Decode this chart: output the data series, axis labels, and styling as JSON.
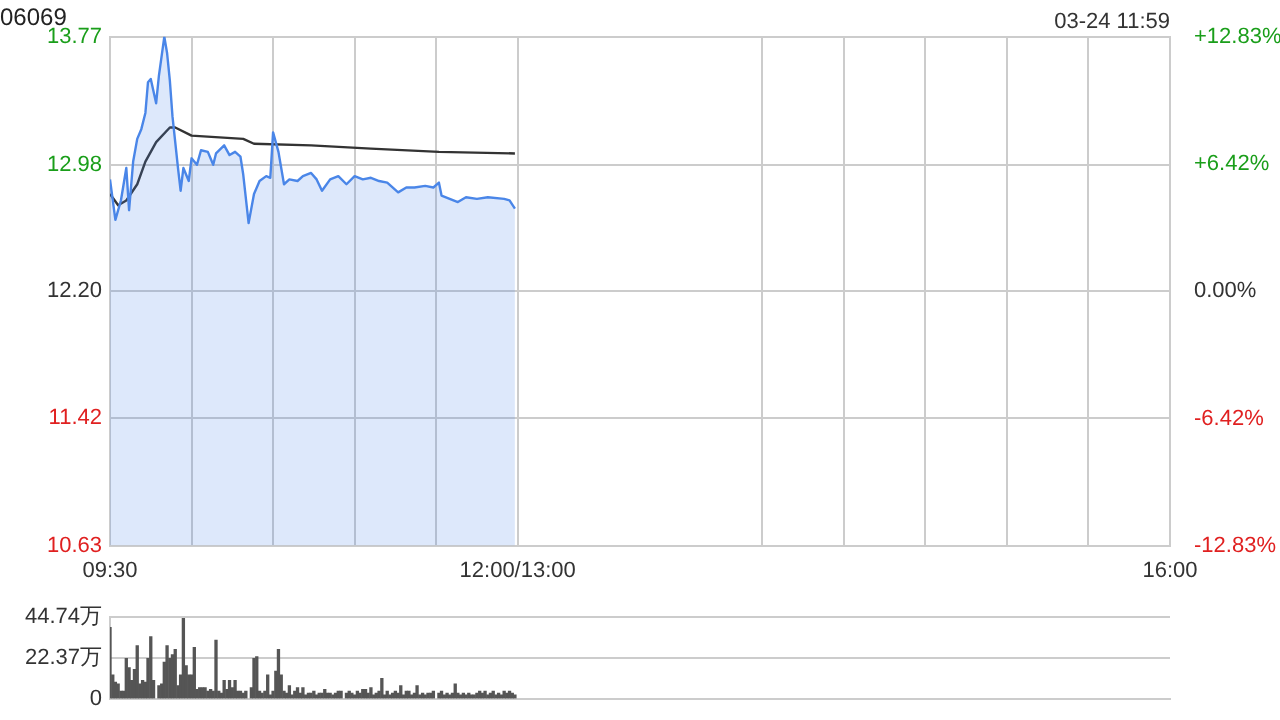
{
  "chart_data": [
    {
      "type": "line",
      "title": "06069",
      "annotations": [
        "03-24 11:59"
      ],
      "marker": "none",
      "grid": true,
      "xlim": [
        9.5,
        16
      ],
      "xticks": [
        {
          "value": 9.5,
          "label": "09:30"
        },
        {
          "value": 10,
          "label": null
        },
        {
          "value": 10.5,
          "label": null
        },
        {
          "value": 11,
          "label": null
        },
        {
          "value": 11.5,
          "label": null
        },
        {
          "value": 12,
          "label": "12:00/13:00"
        },
        {
          "value": 13.5,
          "label": null
        },
        {
          "value": 14,
          "label": null
        },
        {
          "value": 14.5,
          "label": null
        },
        {
          "value": 15,
          "label": null
        },
        {
          "value": 15.5,
          "label": null
        },
        {
          "value": 16,
          "label": "16:00"
        }
      ],
      "ylim": [
        10.63,
        13.77
      ],
      "yticks": [
        10.63,
        11.42,
        {
          "value": 12.2,
          "label": "12.20"
        },
        12.98,
        13.77
      ],
      "y2lim": [
        -12.83,
        12.83
      ],
      "y2ticks": [
        {
          "value": -12.83,
          "label": "-12.83%"
        },
        {
          "value": -6.42,
          "label": "-6.42%"
        },
        {
          "value": 0,
          "label": "0.00%"
        },
        {
          "value": 6.42,
          "label": "+6.42%"
        },
        {
          "value": 12.83,
          "label": "+12.83%"
        }
      ],
      "series": [
        {
          "type": "area",
          "color": "#4a86e8",
          "x": [
            9.5,
            9.533,
            9.567,
            9.6,
            9.617,
            9.642,
            9.667,
            9.692,
            9.717,
            9.733,
            9.75,
            9.783,
            9.8,
            9.833,
            9.85,
            9.867,
            9.883,
            9.917,
            9.933,
            9.95,
            9.983,
            10,
            10.033,
            10.058,
            10.1,
            10.133,
            10.15,
            10.2,
            10.233,
            10.267,
            10.3,
            10.317,
            10.35,
            10.383,
            10.417,
            10.458,
            10.483,
            10.5,
            10.533,
            10.567,
            10.6,
            10.65,
            10.683,
            10.733,
            10.767,
            10.8,
            10.85,
            10.9,
            10.95,
            11,
            11.05,
            11.1,
            11.15,
            11.2,
            11.267,
            11.317,
            11.367,
            11.433,
            11.483,
            11.517,
            11.533,
            11.633,
            11.683,
            11.75,
            11.817,
            11.917,
            11.95,
            11.983
          ],
          "values": [
            12.89,
            12.64,
            12.76,
            12.96,
            12.7,
            13.0,
            13.14,
            13.2,
            13.3,
            13.49,
            13.51,
            13.36,
            13.53,
            13.77,
            13.67,
            13.5,
            13.28,
            12.96,
            12.82,
            12.96,
            12.88,
            13.02,
            12.98,
            13.07,
            13.06,
            12.98,
            13.05,
            13.1,
            13.04,
            13.06,
            13.03,
            12.92,
            12.62,
            12.8,
            12.88,
            12.91,
            12.9,
            13.18,
            13.06,
            12.86,
            12.89,
            12.88,
            12.91,
            12.93,
            12.89,
            12.82,
            12.89,
            12.91,
            12.86,
            12.91,
            12.89,
            12.9,
            12.88,
            12.87,
            12.81,
            12.84,
            12.84,
            12.85,
            12.84,
            12.87,
            12.79,
            12.75,
            12.78,
            12.77,
            12.78,
            12.77,
            12.76,
            12.71
          ]
        },
        {
          "type": "line",
          "color": "#333333",
          "x": [
            9.5,
            9.55,
            9.6,
            9.667,
            9.717,
            9.783,
            9.867,
            9.9,
            10,
            10.317,
            10.383,
            10.733,
            11.1,
            11.517,
            11.983
          ],
          "values": [
            12.8,
            12.73,
            12.76,
            12.86,
            13.0,
            13.12,
            13.21,
            13.21,
            13.16,
            13.14,
            13.11,
            13.1,
            13.08,
            13.06,
            13.05
          ]
        }
      ]
    },
    {
      "type": "bar",
      "grid": "y",
      "tick_labels": "y",
      "xlim": [
        9.5,
        16
      ],
      "ylim": [
        0,
        44.74
      ],
      "yticks": [
        0,
        {
          "value": 22.37,
          "label": "22.37万"
        },
        {
          "value": 44.74,
          "label": "44.74万"
        }
      ],
      "series": [
        {
          "color": "#555555",
          "x": [
            9.5,
            9.517,
            9.533,
            9.55,
            9.567,
            9.583,
            9.6,
            9.617,
            9.633,
            9.65,
            9.667,
            9.683,
            9.7,
            9.717,
            9.733,
            9.75,
            9.767,
            9.8,
            9.817,
            9.833,
            9.85,
            9.867,
            9.883,
            9.9,
            9.917,
            9.933,
            9.95,
            9.967,
            9.983,
            10,
            10.017,
            10.033,
            10.05,
            10.067,
            10.083,
            10.1,
            10.117,
            10.133,
            10.15,
            10.167,
            10.183,
            10.2,
            10.217,
            10.233,
            10.25,
            10.267,
            10.283,
            10.3,
            10.317,
            10.333,
            10.367,
            10.383,
            10.4,
            10.417,
            10.433,
            10.45,
            10.467,
            10.483,
            10.5,
            10.517,
            10.533,
            10.55,
            10.567,
            10.583,
            10.6,
            10.617,
            10.633,
            10.65,
            10.667,
            10.683,
            10.7,
            10.717,
            10.733,
            10.75,
            10.767,
            10.783,
            10.8,
            10.817,
            10.833,
            10.85,
            10.867,
            10.883,
            10.9,
            10.917,
            10.95,
            10.967,
            10.983,
            11,
            11.017,
            11.033,
            11.05,
            11.067,
            11.083,
            11.1,
            11.117,
            11.133,
            11.15,
            11.167,
            11.183,
            11.2,
            11.217,
            11.233,
            11.25,
            11.267,
            11.283,
            11.3,
            11.317,
            11.333,
            11.35,
            11.367,
            11.383,
            11.4,
            11.417,
            11.433,
            11.45,
            11.467,
            11.483,
            11.517,
            11.533,
            11.55,
            11.567,
            11.583,
            11.6,
            11.617,
            11.633,
            11.65,
            11.667,
            11.683,
            11.7,
            11.717,
            11.733,
            11.75,
            11.767,
            11.783,
            11.8,
            11.817,
            11.833,
            11.85,
            11.867,
            11.883,
            11.9,
            11.917,
            11.933,
            11.95,
            11.967,
            11.983
          ],
          "values": [
            39,
            13,
            9,
            8,
            4,
            4,
            22,
            17,
            10,
            16,
            29,
            8,
            10,
            9,
            22,
            34,
            10,
            7,
            8,
            20,
            29,
            22,
            24,
            27,
            7,
            13,
            44,
            18,
            13,
            13,
            28,
            5,
            6,
            6,
            6,
            4,
            5,
            4,
            32,
            4,
            3,
            10,
            5,
            10,
            6,
            10,
            4,
            4,
            3,
            4,
            6,
            22,
            23,
            4,
            3,
            4,
            13,
            2,
            4,
            15,
            27,
            13,
            4,
            3,
            7,
            2,
            4,
            6,
            3,
            6,
            2,
            3,
            3,
            4,
            2,
            3,
            3,
            5,
            3,
            3,
            2,
            3,
            4,
            4,
            3,
            4,
            3,
            2,
            4,
            3,
            5,
            5,
            3,
            6,
            2,
            3,
            4,
            11,
            2,
            4,
            2,
            3,
            4,
            3,
            7,
            2,
            4,
            4,
            2,
            3,
            7,
            2,
            3,
            2,
            3,
            3,
            4,
            3,
            4,
            2,
            3,
            2,
            3,
            8,
            3,
            2,
            3,
            2,
            3,
            2,
            2,
            3,
            4,
            3,
            4,
            2,
            3,
            4,
            2,
            3,
            2,
            4,
            3,
            4,
            3,
            2
          ]
        }
      ]
    }
  ]
}
